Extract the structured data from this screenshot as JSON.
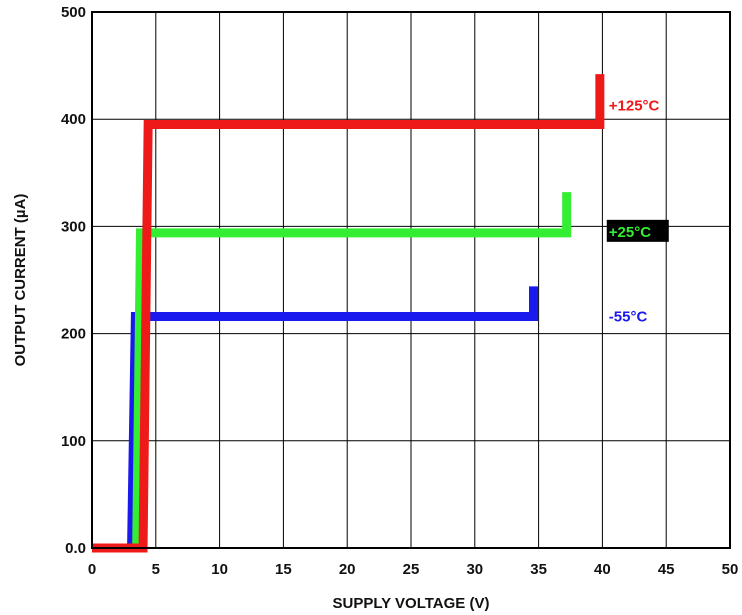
{
  "chart_data": {
    "type": "line",
    "title": "",
    "xlabel": "SUPPLY VOLTAGE (V)",
    "ylabel": "OUTPUT CURRENT (µA)",
    "xlim": [
      0,
      50
    ],
    "ylim": [
      0,
      500
    ],
    "x_ticks": [
      0,
      5,
      10,
      15,
      20,
      25,
      30,
      35,
      40,
      45,
      50
    ],
    "x_tick_labels": [
      "0",
      "5",
      "10",
      "15",
      "20",
      "25",
      "30",
      "35",
      "40",
      "45",
      "50"
    ],
    "y_ticks": [
      0,
      100,
      200,
      300,
      400,
      500
    ],
    "y_tick_labels": [
      "0.0",
      "100",
      "200",
      "300",
      "400",
      "500"
    ],
    "grid": true,
    "series": [
      {
        "name": "-55°C",
        "color": "#1a1aee",
        "label_bg": "",
        "label_color": "#1a1aee",
        "label_anchor": [
          40.5,
          215
        ],
        "x": [
          0,
          3.1,
          3.4,
          34.6,
          34.6
        ],
        "y": [
          0,
          0,
          216,
          216,
          244
        ]
      },
      {
        "name": "+25°C",
        "color": "#33ee33",
        "label_bg": "#000000",
        "label_color": "#33ee33",
        "label_anchor": [
          40.5,
          294
        ],
        "x": [
          0,
          3.5,
          3.8,
          37.2,
          37.2
        ],
        "y": [
          0,
          0,
          294,
          294,
          332
        ]
      },
      {
        "name": "+125°C",
        "color": "#ee1a1a",
        "label_bg": "",
        "label_color": "#ee1a1a",
        "label_anchor": [
          40.5,
          412
        ],
        "x": [
          0,
          4.0,
          4.4,
          39.8,
          39.8
        ],
        "y": [
          0,
          0,
          395,
          395,
          442
        ]
      }
    ]
  }
}
